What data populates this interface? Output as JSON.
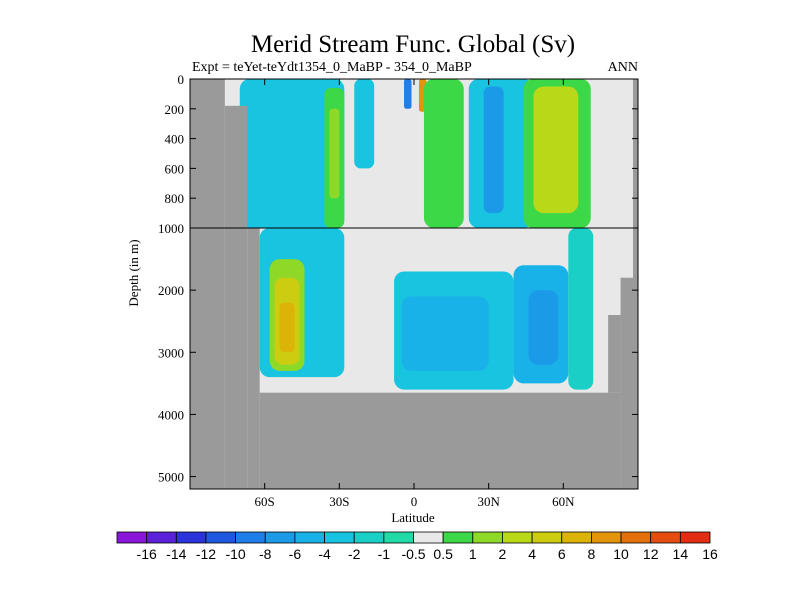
{
  "chart_data": {
    "type": "heatmap",
    "title": "Merid Stream Func. Global (Sv)",
    "subtitle_left": "Expt = teYet-teYdt1354_0_MaBP - 354_0_MaBP",
    "subtitle_right": "ANN",
    "xlabel": "Latitude",
    "ylabel": "Depth (in m)",
    "x_range": [
      -90,
      90
    ],
    "y_break": 1000,
    "y_upper_range": [
      0,
      1000
    ],
    "y_lower_range": [
      1000,
      5200
    ],
    "x_ticks": [
      {
        "value": -60,
        "label": "60S"
      },
      {
        "value": -30,
        "label": "30S"
      },
      {
        "value": 0,
        "label": "0"
      },
      {
        "value": 30,
        "label": "30N"
      },
      {
        "value": 60,
        "label": "60N"
      }
    ],
    "y_ticks": [
      {
        "value": 0,
        "label": "0"
      },
      {
        "value": 200,
        "label": "200"
      },
      {
        "value": 400,
        "label": "400"
      },
      {
        "value": 600,
        "label": "600"
      },
      {
        "value": 800,
        "label": "800"
      },
      {
        "value": 1000,
        "label": "1000"
      },
      {
        "value": 2000,
        "label": "2000"
      },
      {
        "value": 3000,
        "label": "3000"
      },
      {
        "value": 4000,
        "label": "4000"
      },
      {
        "value": 5000,
        "label": "5000"
      }
    ],
    "colorbar": {
      "levels": [
        "-16",
        "-14",
        "-12",
        "-10",
        "-8",
        "-6",
        "-4",
        "-2",
        "-1",
        "-0.5",
        "0.5",
        "1",
        "2",
        "4",
        "6",
        "8",
        "10",
        "12",
        "14",
        "16"
      ],
      "colors": [
        "#8a16d8",
        "#5a22d8",
        "#2a34d8",
        "#1f58e0",
        "#1f7ee8",
        "#1b9ae8",
        "#18b2e8",
        "#18c4e0",
        "#1ad0c6",
        "#22d9a8",
        "#e8e8e8",
        "#3cd848",
        "#8ed828",
        "#b8d818",
        "#cccc10",
        "#dcb408",
        "#e2940a",
        "#e4700c",
        "#e44c10",
        "#e22c14"
      ]
    },
    "land_mask": [
      {
        "lat": [
          -90,
          -76
        ],
        "depth": [
          0,
          5200
        ]
      },
      {
        "lat": [
          -76,
          -67
        ],
        "depth": [
          180,
          5200
        ]
      },
      {
        "lat": [
          -67,
          -62
        ],
        "depth": [
          1000,
          5200
        ]
      },
      {
        "lat": [
          -62,
          83
        ],
        "depth": [
          3650,
          5200
        ]
      },
      {
        "lat": [
          78,
          83
        ],
        "depth": [
          2400,
          3650
        ]
      },
      {
        "lat": [
          83,
          88
        ],
        "depth": [
          1800,
          5200
        ]
      },
      {
        "lat": [
          88,
          90
        ],
        "depth": [
          0,
          5200
        ]
      }
    ],
    "regions": [
      {
        "lat": [
          -70,
          -28
        ],
        "depth": [
          0,
          1000
        ],
        "value": -2
      },
      {
        "lat": [
          -62,
          -28
        ],
        "depth": [
          1000,
          3400
        ],
        "value": -2
      },
      {
        "lat": [
          -58,
          -44
        ],
        "depth": [
          1500,
          3300
        ],
        "value": 2
      },
      {
        "lat": [
          -56,
          -46
        ],
        "depth": [
          1800,
          3200
        ],
        "value": 6
      },
      {
        "lat": [
          -54,
          -48
        ],
        "depth": [
          2200,
          3000
        ],
        "value": 8
      },
      {
        "lat": [
          -36,
          -28
        ],
        "depth": [
          60,
          1000
        ],
        "value": 1
      },
      {
        "lat": [
          -34,
          -30
        ],
        "depth": [
          200,
          800
        ],
        "value": 2
      },
      {
        "lat": [
          -24,
          -16
        ],
        "depth": [
          0,
          600
        ],
        "value": -2
      },
      {
        "lat": [
          -4,
          -1
        ],
        "depth": [
          0,
          200
        ],
        "value": -8
      },
      {
        "lat": [
          2,
          5
        ],
        "depth": [
          0,
          220
        ],
        "value": 10
      },
      {
        "lat": [
          4,
          20
        ],
        "depth": [
          0,
          1000
        ],
        "value": 1
      },
      {
        "lat": [
          -8,
          40
        ],
        "depth": [
          1700,
          3600
        ],
        "value": -2
      },
      {
        "lat": [
          -5,
          30
        ],
        "depth": [
          2100,
          3300
        ],
        "value": -4
      },
      {
        "lat": [
          22,
          48
        ],
        "depth": [
          0,
          1000
        ],
        "value": -2
      },
      {
        "lat": [
          28,
          36
        ],
        "depth": [
          50,
          900
        ],
        "value": -6
      },
      {
        "lat": [
          40,
          62
        ],
        "depth": [
          1600,
          3500
        ],
        "value": -4
      },
      {
        "lat": [
          46,
          58
        ],
        "depth": [
          2000,
          3200
        ],
        "value": -6
      },
      {
        "lat": [
          44,
          71
        ],
        "depth": [
          0,
          1000
        ],
        "value": 1
      },
      {
        "lat": [
          48,
          66
        ],
        "depth": [
          50,
          900
        ],
        "value": 4
      },
      {
        "lat": [
          62,
          72
        ],
        "depth": [
          1000,
          3600
        ],
        "value": -1
      }
    ]
  }
}
